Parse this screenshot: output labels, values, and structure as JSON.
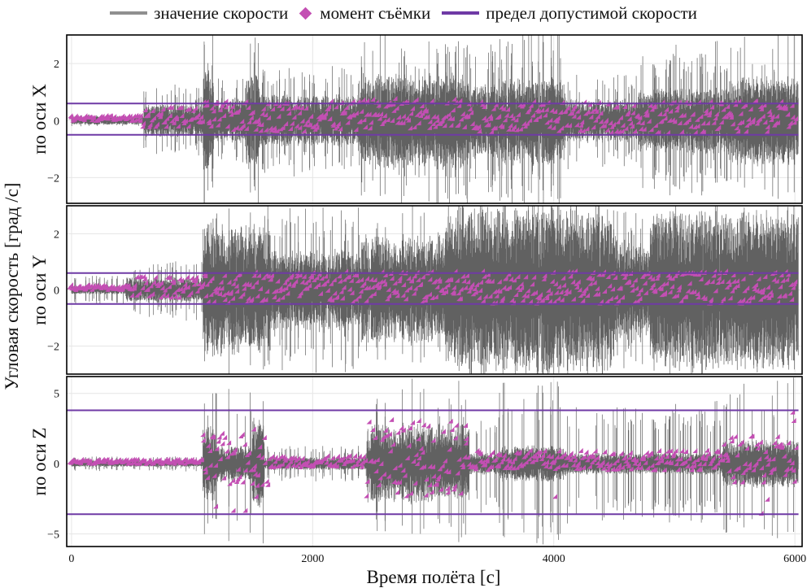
{
  "legend": {
    "items": [
      {
        "label": "значение скорости",
        "kind": "line",
        "color": "#8f8f8f"
      },
      {
        "label": "момент съёмки",
        "kind": "diamond",
        "color": "#c34fb3"
      },
      {
        "label": "предел допустимой скорости",
        "kind": "line",
        "color": "#6f3aa5"
      }
    ]
  },
  "colors": {
    "speed": "#616161",
    "capture": "#c34fb3",
    "limit": "#6f3aa5",
    "grid": "#e6e6e6",
    "frame": "#000000"
  },
  "chart_data": {
    "type": "line",
    "xlabel": "Время полёта [с]",
    "ylabel": "Угловая скорость [град /с]",
    "xlim": [
      -40,
      6060
    ],
    "xticks": [
      0,
      2000,
      4000,
      6000
    ],
    "xtick_labels": [
      "0",
      "2000",
      "4000",
      "6000"
    ],
    "grid": true,
    "legend_position": "top",
    "panels": [
      {
        "title": "по оси X",
        "axis_name": "X",
        "ylim": [
          -2.9,
          3.0
        ],
        "yticks": [
          -2,
          0,
          2
        ],
        "ytick_labels": [
          "−2",
          "0",
          "2"
        ],
        "limit_upper": 0.6,
        "limit_lower": -0.5,
        "segments": [
          {
            "x": [
              0,
              600
            ],
            "amp": 0.12,
            "spike": 0.2
          },
          {
            "x": [
              600,
              1090
            ],
            "amp": 0.45,
            "spike": 1.2
          },
          {
            "x": [
              1090,
              1180
            ],
            "amp": 1.4,
            "spike": 3.0
          },
          {
            "x": [
              1180,
              1450
            ],
            "amp": 0.6,
            "spike": 1.5
          },
          {
            "x": [
              1450,
              1560
            ],
            "amp": 1.3,
            "spike": 3.0
          },
          {
            "x": [
              1560,
              2400
            ],
            "amp": 0.7,
            "spike": 1.8
          },
          {
            "x": [
              2400,
              3300
            ],
            "amp": 1.3,
            "spike": 3.0
          },
          {
            "x": [
              3300,
              3550
            ],
            "amp": 1.0,
            "spike": 2.5
          },
          {
            "x": [
              3550,
              4100
            ],
            "amp": 1.2,
            "spike": 3.0
          },
          {
            "x": [
              4100,
              4700
            ],
            "amp": 0.6,
            "spike": 1.6
          },
          {
            "x": [
              4700,
              5450
            ],
            "amp": 0.9,
            "spike": 2.5
          },
          {
            "x": [
              5450,
              6030
            ],
            "amp": 1.2,
            "spike": 3.0
          }
        ],
        "captures": [
          {
            "x": [
              0,
              600
            ],
            "range": [
              -0.08,
              0.1
            ]
          },
          {
            "x": [
              600,
              1100
            ],
            "range": [
              -0.3,
              0.4
            ]
          },
          {
            "x": [
              1100,
              2400
            ],
            "range": [
              -0.45,
              0.6
            ]
          },
          {
            "x": [
              2400,
              3300
            ],
            "range": [
              -0.35,
              0.7
            ]
          },
          {
            "x": [
              3300,
              6030
            ],
            "range": [
              -0.5,
              0.6
            ]
          }
        ]
      },
      {
        "title": "по оси Y",
        "axis_name": "Y",
        "ylim": [
          -3.0,
          3.0
        ],
        "yticks": [
          -2,
          0,
          2
        ],
        "ytick_labels": [
          "−2",
          "0",
          "2"
        ],
        "limit_upper": 0.6,
        "limit_lower": -0.5,
        "segments": [
          {
            "x": [
              0,
              450
            ],
            "amp": 0.12,
            "spike": 0.5
          },
          {
            "x": [
              450,
              1090
            ],
            "amp": 0.35,
            "spike": 1.0
          },
          {
            "x": [
              1090,
              1650
            ],
            "amp": 1.8,
            "spike": 3.0
          },
          {
            "x": [
              1650,
              2400
            ],
            "amp": 1.1,
            "spike": 2.8
          },
          {
            "x": [
              2400,
              3100
            ],
            "amp": 1.5,
            "spike": 3.0
          },
          {
            "x": [
              3100,
              4500
            ],
            "amp": 2.4,
            "spike": 3.0
          },
          {
            "x": [
              4500,
              4800
            ],
            "amp": 1.4,
            "spike": 2.8
          },
          {
            "x": [
              4800,
              6030
            ],
            "amp": 2.2,
            "spike": 3.0
          }
        ],
        "captures": [
          {
            "x": [
              0,
              500
            ],
            "range": [
              -0.08,
              0.1
            ]
          },
          {
            "x": [
              500,
              1100
            ],
            "range": [
              -0.35,
              0.45
            ]
          },
          {
            "x": [
              1100,
              6030
            ],
            "range": [
              -0.55,
              0.6
            ]
          }
        ]
      },
      {
        "title": "по оси Z",
        "axis_name": "Z",
        "ylim": [
          -5.9,
          6.2
        ],
        "yticks": [
          -5,
          0,
          5
        ],
        "ytick_labels": [
          "−5",
          "0",
          "5"
        ],
        "limit_upper": 3.8,
        "limit_lower": -3.6,
        "segments": [
          {
            "x": [
              0,
              1090
            ],
            "amp": 0.18,
            "spike": 0.5
          },
          {
            "x": [
              1090,
              1200
            ],
            "amp": 2.0,
            "spike": 5.9
          },
          {
            "x": [
              1200,
              1500
            ],
            "amp": 1.0,
            "spike": 5.5
          },
          {
            "x": [
              1500,
              1600
            ],
            "amp": 2.5,
            "spike": 6.0
          },
          {
            "x": [
              1600,
              2450
            ],
            "amp": 0.35,
            "spike": 1.2
          },
          {
            "x": [
              2450,
              3300
            ],
            "amp": 2.2,
            "spike": 5.8
          },
          {
            "x": [
              3300,
              3550
            ],
            "amp": 0.6,
            "spike": 3.5
          },
          {
            "x": [
              3550,
              4100
            ],
            "amp": 1.0,
            "spike": 5.5
          },
          {
            "x": [
              4100,
              5400
            ],
            "amp": 0.6,
            "spike": 4.0
          },
          {
            "x": [
              5400,
              6030
            ],
            "amp": 1.3,
            "spike": 5.8
          }
        ],
        "captures": [
          {
            "x": [
              0,
              1100
            ],
            "range": [
              -0.15,
              0.15
            ]
          },
          {
            "x": [
              1100,
              1650
            ],
            "range": [
              -1.8,
              2.0
            ]
          },
          {
            "x": [
              1650,
              2450
            ],
            "range": [
              -0.4,
              0.4
            ]
          },
          {
            "x": [
              2450,
              3300
            ],
            "range": [
              -2.5,
              3.0
            ]
          },
          {
            "x": [
              3300,
              5400
            ],
            "range": [
              -0.6,
              0.8
            ]
          },
          {
            "x": [
              5400,
              6030
            ],
            "range": [
              -1.6,
              1.8
            ]
          }
        ],
        "outliers": [
          {
            "x": 1215,
            "y": -3.2
          },
          {
            "x": 1360,
            "y": -3.5
          },
          {
            "x": 1460,
            "y": -3.5
          },
          {
            "x": 1530,
            "y": 2.3
          },
          {
            "x": 1550,
            "y": -2.5
          },
          {
            "x": 2720,
            "y": -2.2
          },
          {
            "x": 2900,
            "y": 2.9
          },
          {
            "x": 2940,
            "y": 2.6
          },
          {
            "x": 3020,
            "y": 1.5
          },
          {
            "x": 3140,
            "y": -2.2
          },
          {
            "x": 3290,
            "y": 1.3
          },
          {
            "x": 4030,
            "y": -2.5
          },
          {
            "x": 5740,
            "y": -3.7
          },
          {
            "x": 5790,
            "y": -2.7
          },
          {
            "x": 6000,
            "y": 3.5
          },
          {
            "x": 6010,
            "y": 2.9
          }
        ]
      }
    ]
  }
}
